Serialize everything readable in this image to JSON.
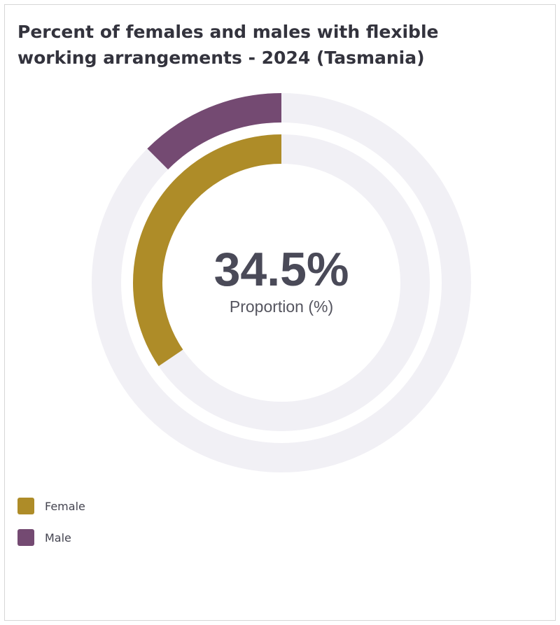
{
  "chart_data": {
    "type": "pie",
    "title": "Percent of females and males with flexible working arrangements - 2024 (Tasmania)",
    "center_value": "34.5%",
    "center_label": "Proportion (%)",
    "series": [
      {
        "name": "Male",
        "value": 12.5,
        "color": "#744a72",
        "ring": "outer"
      },
      {
        "name": "Female",
        "value": 34.5,
        "color": "#ae8c28",
        "ring": "inner"
      }
    ],
    "max": 100,
    "track_color": "#f1f0f5",
    "legend": {
      "position": "bottom-left",
      "items": [
        {
          "label": "Female",
          "color": "#ae8c28"
        },
        {
          "label": "Male",
          "color": "#744a72"
        }
      ]
    }
  }
}
